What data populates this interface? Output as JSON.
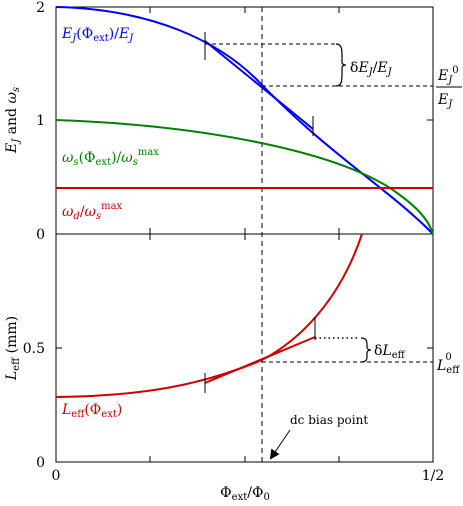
{
  "chart_data": [
    {
      "type": "line",
      "panel": "top",
      "ylabel": "E_J  and  ω_s",
      "xlim": [
        0,
        0.5
      ],
      "ylim": [
        0,
        2
      ],
      "yticks": [
        "0",
        "1",
        "2"
      ],
      "grid": false,
      "series": [
        {
          "name": "E_J(Φ_ext)/E_J",
          "color": "#0000ff",
          "x": [
            0,
            0.025,
            0.05,
            0.075,
            0.1,
            0.125,
            0.15,
            0.175,
            0.2,
            0.225,
            0.25,
            0.275,
            0.3,
            0.325,
            0.35,
            0.375,
            0.4,
            0.425,
            0.45,
            0.475,
            0.5
          ],
          "y": [
            2.0,
            1.995,
            1.98,
            1.956,
            1.902,
            1.848,
            1.782,
            1.704,
            1.618,
            1.522,
            1.414,
            1.298,
            1.176,
            1.044,
            0.908,
            0.766,
            0.618,
            0.466,
            0.312,
            0.156,
            0.0
          ]
        },
        {
          "name": "ω_s(Φ_ext)/ω_s^max",
          "color": "#008000",
          "x": [
            0,
            0.05,
            0.1,
            0.15,
            0.2,
            0.25,
            0.3,
            0.35,
            0.4,
            0.425,
            0.45,
            0.475,
            0.49,
            0.5
          ],
          "y": [
            1.0,
            0.994,
            0.976,
            0.945,
            0.9,
            0.84,
            0.767,
            0.675,
            0.558,
            0.488,
            0.4,
            0.28,
            0.17,
            0.0
          ]
        },
        {
          "name": "ω_d/ω_s^max",
          "color": "#cc0000",
          "x": [
            0,
            0.5
          ],
          "y": [
            0.4,
            0.4
          ]
        }
      ],
      "annotations": [
        {
          "text": "δE_J/E_J",
          "kind": "bracket"
        },
        {
          "text": "E_J^0/E_J",
          "kind": "dashed-level",
          "value": 1.3
        }
      ],
      "tangent_line": {
        "x": [
          0.175,
          0.325
        ],
        "y": [
          1.67,
          0.98
        ]
      }
    },
    {
      "type": "line",
      "panel": "bottom",
      "xlabel": "Φ_ext/Φ_0",
      "ylabel": "L_eff (mm)",
      "xlim": [
        0,
        0.5
      ],
      "ylim": [
        0,
        1.0
      ],
      "xticks": [
        "0",
        "1/2"
      ],
      "yticks": [
        "0",
        "0.5"
      ],
      "grid": false,
      "series": [
        {
          "name": "L_eff(Φ_ext)",
          "color": "#cc0000",
          "x": [
            0,
            0.05,
            0.1,
            0.15,
            0.2,
            0.225,
            0.25,
            0.275,
            0.3,
            0.325,
            0.35,
            0.375,
            0.39,
            0.4
          ],
          "y": [
            0.285,
            0.288,
            0.296,
            0.312,
            0.35,
            0.38,
            0.428,
            0.49,
            0.565,
            0.655,
            0.77,
            0.91,
            1.0,
            1.0
          ]
        }
      ],
      "annotations": [
        {
          "text": "δL_eff",
          "kind": "bracket"
        },
        {
          "text": "L_eff^0",
          "kind": "dashed-level",
          "value": 0.44
        },
        {
          "text": "dc bias point",
          "kind": "arrow",
          "x": 0.25
        }
      ],
      "tangent_line": {
        "x": [
          0.175,
          0.325
        ],
        "y": [
          0.315,
          0.545
        ]
      }
    }
  ],
  "labels": {
    "top_y_ticks": [
      "0",
      "1",
      "2"
    ],
    "bottom_y_ticks": [
      "0",
      "0.5"
    ],
    "x_ticks": [
      "0",
      "1/2"
    ],
    "dc_bias": "dc bias point"
  }
}
